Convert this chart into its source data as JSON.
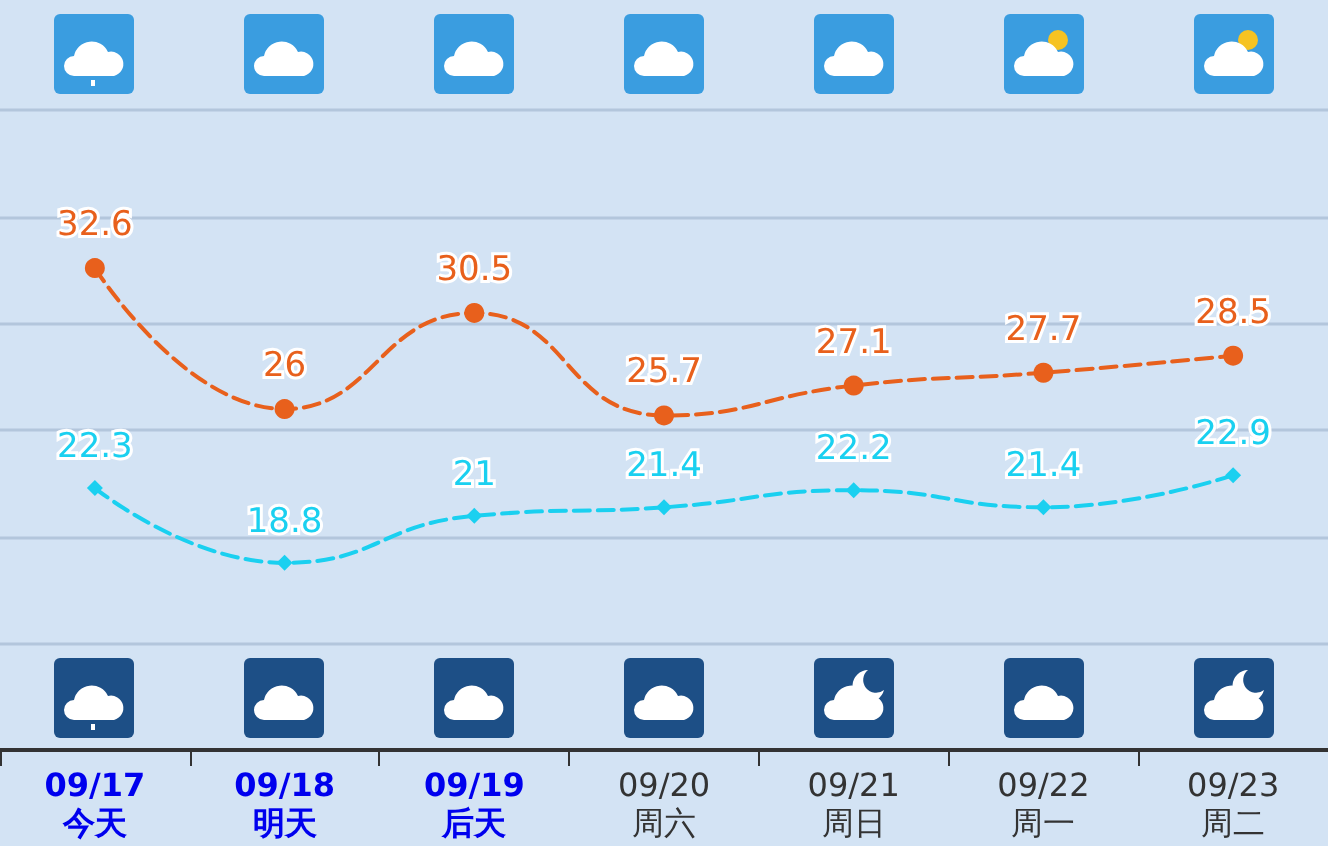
{
  "chart_data": {
    "type": "line",
    "categories": [
      "09/17\n今天",
      "09/18\n明天",
      "09/19\n后天",
      "09/20\n周六",
      "09/21\n周日",
      "09/22\n周一",
      "09/23\n周二"
    ],
    "series": [
      {
        "color": "#e8601c",
        "marker": "circle",
        "values": [
          32.6,
          26,
          30.5,
          25.7,
          27.1,
          27.7,
          28.5
        ]
      },
      {
        "color": "#1ad0f0",
        "marker": "diamond",
        "values": [
          22.3,
          18.8,
          21,
          21.4,
          22.2,
          21.4,
          22.9
        ]
      }
    ],
    "ylim": [
      15,
      40
    ],
    "yticks": [
      {
        "value": 15,
        "label": null
      },
      {
        "value": 20,
        "label": null
      },
      {
        "value": 25,
        "label": null
      },
      {
        "value": 30,
        "label": null
      },
      {
        "value": 35,
        "label": null
      },
      {
        "value": 40,
        "label": null
      }
    ],
    "grid": "y",
    "data_labels": true,
    "line_style": "dashed",
    "tick_labels": "x"
  }
}
